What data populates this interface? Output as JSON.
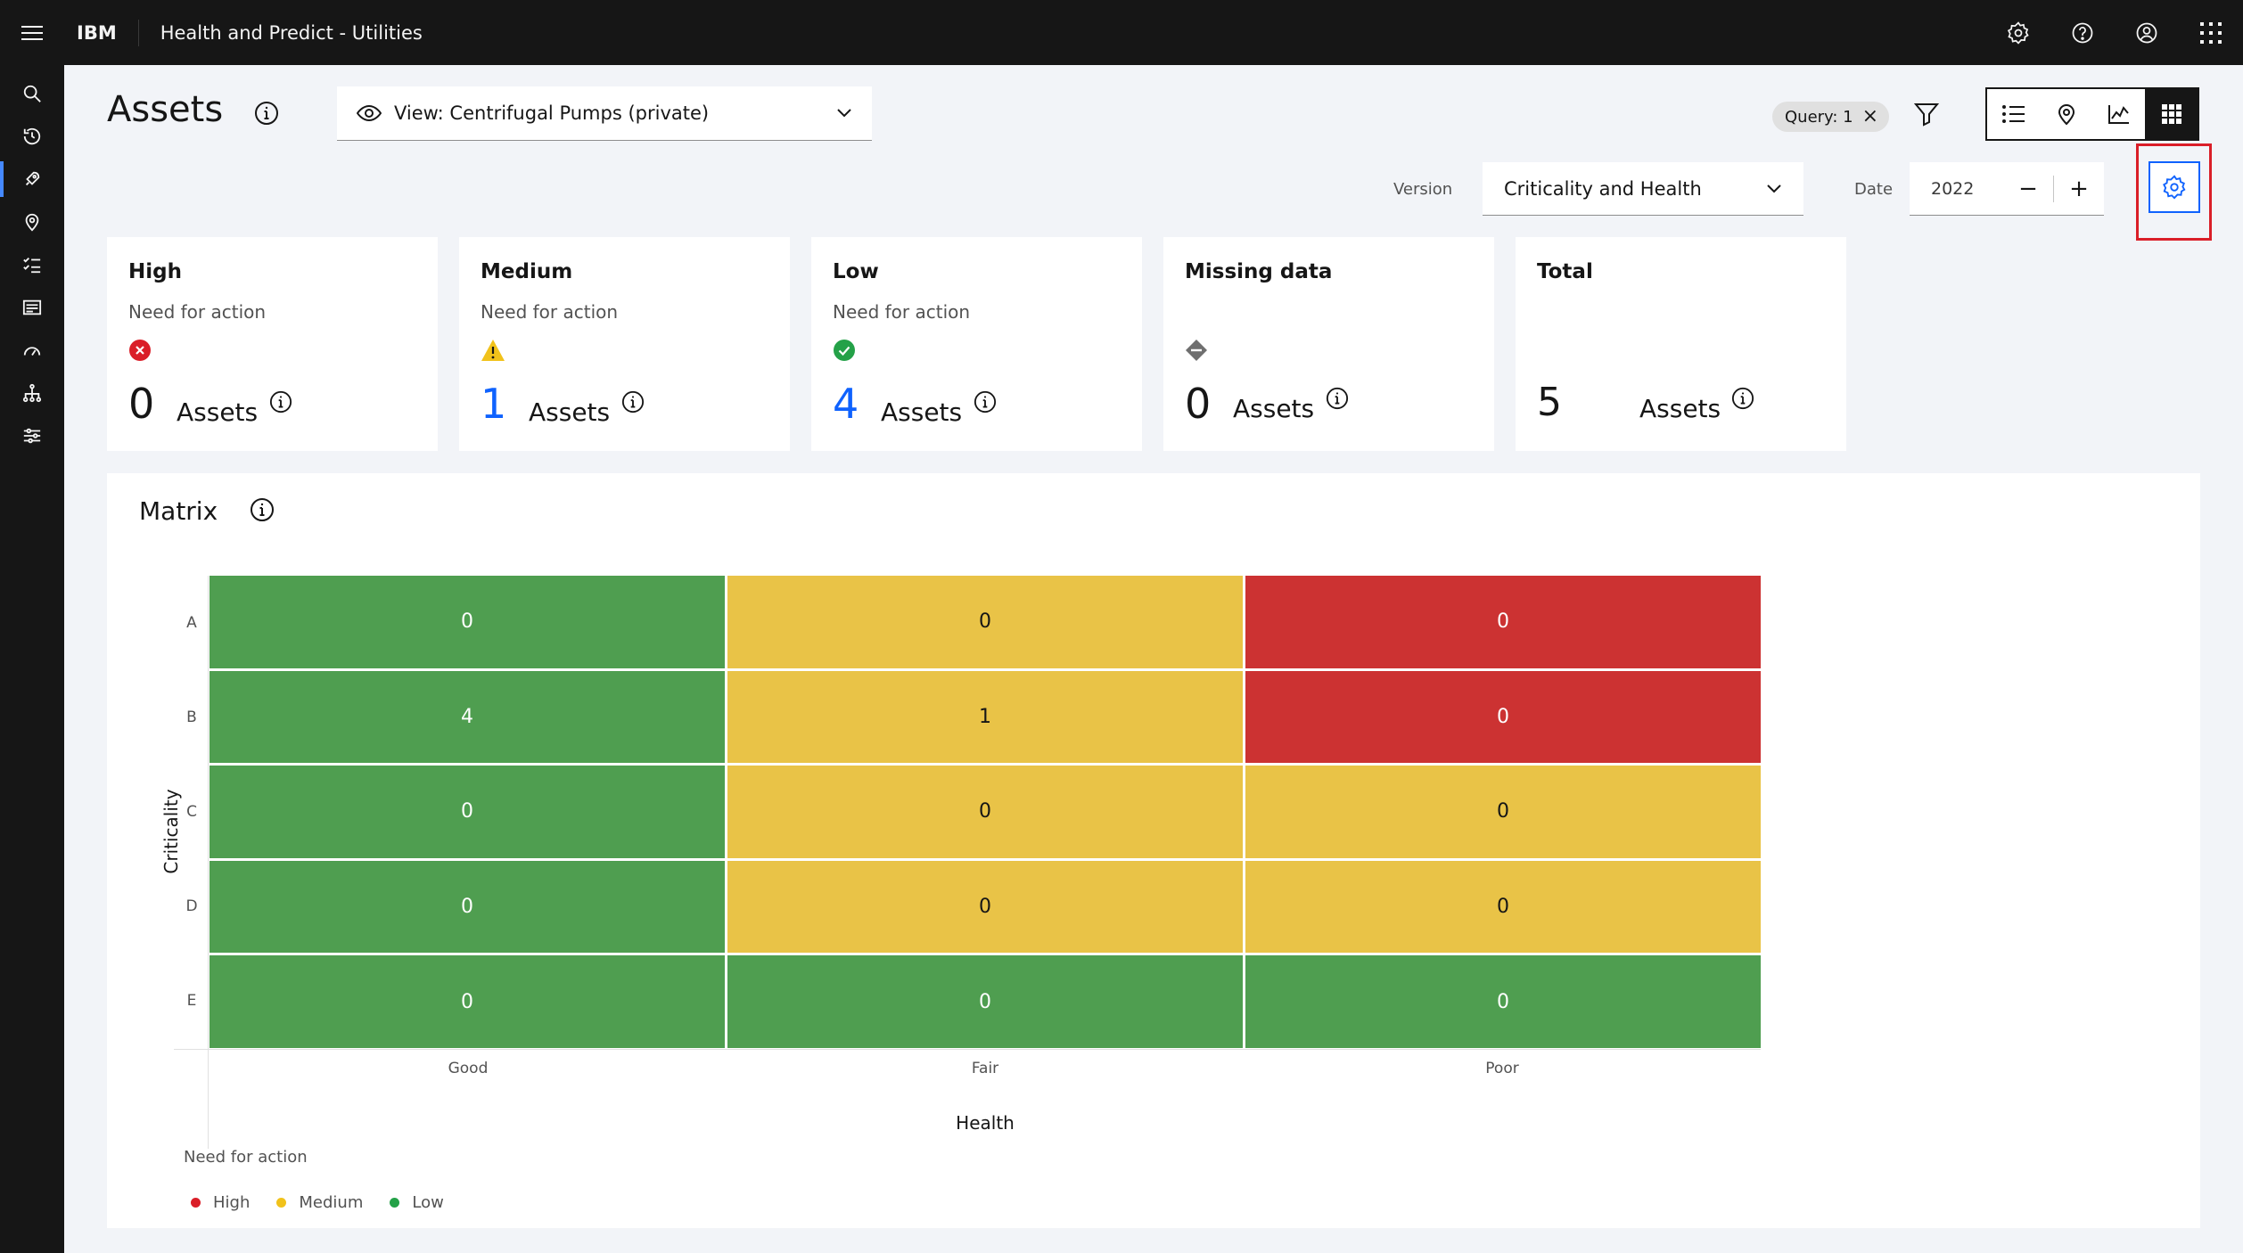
{
  "header": {
    "brand": "IBM",
    "product": "Health and Predict - Utilities",
    "icons": [
      "settings-icon",
      "help-icon",
      "user-avatar-icon",
      "app-switcher-icon"
    ]
  },
  "nav": {
    "items": [
      "search-icon",
      "recent-icon",
      "rocket-icon",
      "location-icon",
      "checklist-icon",
      "dashboard-icon",
      "meter-icon",
      "hierarchy-icon",
      "sliders-icon"
    ],
    "active_index": 2
  },
  "page": {
    "title": "Assets",
    "view_select": "View: Centrifugal Pumps (private)",
    "query_tag": "Query: 1",
    "version_label": "Version",
    "version_value": "Criticality and Health",
    "date_label": "Date",
    "date_value": "2022",
    "date_decrement": "−",
    "date_increment": "+"
  },
  "cards": [
    {
      "title": "High",
      "subtitle": "Need for action",
      "count": "0",
      "unit": "Assets",
      "icon": "error-filled-icon"
    },
    {
      "title": "Medium",
      "subtitle": "Need for action",
      "count": "1",
      "unit": "Assets",
      "icon": "warning-filled-icon"
    },
    {
      "title": "Low",
      "subtitle": "Need for action",
      "count": "4",
      "unit": "Assets",
      "icon": "checkmark-filled-icon"
    },
    {
      "title": "Missing data",
      "subtitle": "",
      "count": "0",
      "unit": "Assets",
      "icon": "diamond-missing-icon"
    },
    {
      "title": "Total",
      "subtitle": "",
      "count": "5",
      "unit": "Assets",
      "icon": ""
    }
  ],
  "matrix": {
    "title": "Matrix",
    "y_title": "Criticality",
    "x_title": "Health",
    "rows": [
      "A",
      "B",
      "C",
      "D",
      "E"
    ],
    "cols": [
      "Good",
      "Fair",
      "Poor"
    ],
    "values": [
      [
        "0",
        "0",
        "0"
      ],
      [
        "4",
        "1",
        "0"
      ],
      [
        "0",
        "0",
        "0"
      ],
      [
        "0",
        "0",
        "0"
      ],
      [
        "0",
        "0",
        "0"
      ]
    ],
    "colors": [
      [
        "g",
        "y",
        "r"
      ],
      [
        "g",
        "y",
        "r"
      ],
      [
        "g",
        "y",
        "y"
      ],
      [
        "g",
        "y",
        "y"
      ],
      [
        "g",
        "g",
        "g"
      ]
    ],
    "legend_title": "Need for action",
    "legend": [
      {
        "label": "High",
        "color": "#da1e28"
      },
      {
        "label": "Medium",
        "color": "#f1c21b"
      },
      {
        "label": "Low",
        "color": "#24a148"
      }
    ]
  },
  "colors": {
    "good": "#4f9e50",
    "fair": "#e9c347",
    "poor": "#cc3232",
    "accent": "#0f62fe",
    "highlight": "#da1e28"
  }
}
